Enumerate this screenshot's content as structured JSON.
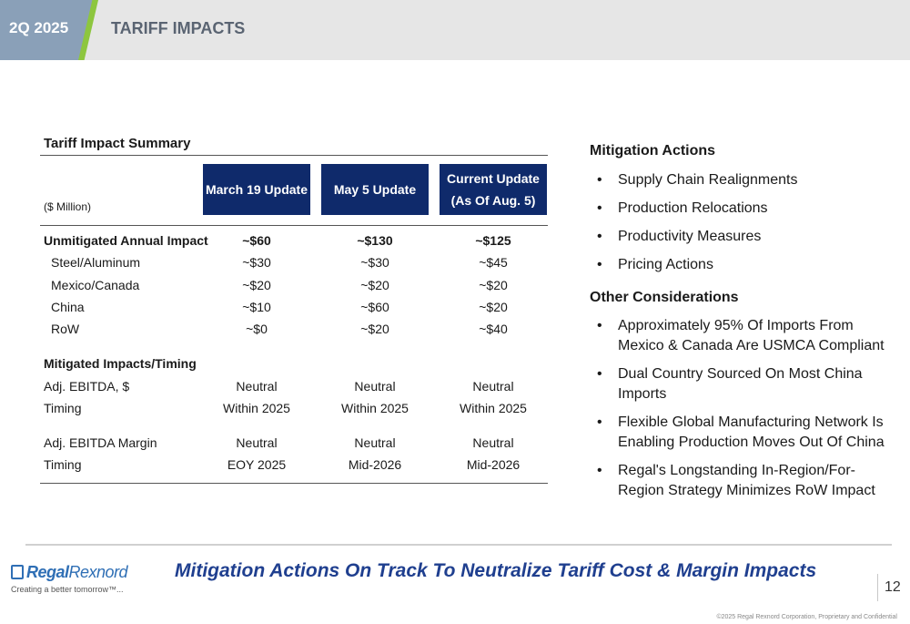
{
  "header": {
    "quarter": "2Q 2025",
    "title": "TARIFF IMPACTS"
  },
  "summary": {
    "title": "Tariff Impact Summary",
    "units": "($ Million)",
    "columns": [
      "March 19 Update",
      "May 5 Update",
      "Current Update\n(As Of Aug. 5)"
    ],
    "rows": [
      {
        "label": "Unmitigated Annual Impact",
        "values": [
          "~$60",
          "~$130",
          "~$125"
        ]
      },
      {
        "label": "Steel/Aluminum",
        "values": [
          "~$30",
          "~$30",
          "~$45"
        ]
      },
      {
        "label": "Mexico/Canada",
        "values": [
          "~$20",
          "~$20",
          "~$20"
        ]
      },
      {
        "label": "China",
        "values": [
          "~$10",
          "~$60",
          "~$20"
        ]
      },
      {
        "label": "RoW",
        "values": [
          "~$0",
          "~$20",
          "~$40"
        ]
      },
      {
        "label": "Mitigated Impacts/Timing",
        "values": [
          "",
          "",
          ""
        ]
      },
      {
        "label": "Adj. EBITDA, $",
        "values": [
          "Neutral",
          "Neutral",
          "Neutral"
        ]
      },
      {
        "label": "Timing",
        "values": [
          "Within 2025",
          "Within 2025",
          "Within 2025"
        ]
      },
      {
        "label": "Adj. EBITDA Margin",
        "values": [
          "Neutral",
          "Neutral",
          "Neutral"
        ]
      },
      {
        "label": "Timing",
        "values": [
          "EOY 2025",
          "Mid-2026",
          "Mid-2026"
        ]
      }
    ]
  },
  "mitigation": {
    "heading": "Mitigation Actions",
    "items": [
      "Supply Chain Realignments",
      "Production Relocations",
      "Productivity Measures",
      "Pricing Actions"
    ]
  },
  "considerations": {
    "heading": "Other Considerations",
    "items": [
      "Approximately 95% Of Imports From Mexico & Canada Are USMCA Compliant",
      "Dual Country Sourced On Most China Imports",
      "Flexible Global Manufacturing Network Is Enabling Production Moves Out Of China",
      "Regal's Longstanding In-Region/For-Region Strategy Minimizes RoW Impact"
    ]
  },
  "footer": {
    "logo_part1": "Regal",
    "logo_part2": "Rexnord",
    "tagline": "Creating a better tomorrow™...",
    "banner": "Mitigation Actions On Track To Neutralize Tariff Cost & Margin Impacts",
    "page_number": "12",
    "copyright": "©2025 Regal Rexnord Corporation, Proprietary and Confidential"
  },
  "colors": {
    "header_bg": "#e6e6e6",
    "quarter_tab": "#8aa0b8",
    "accent_green": "#8dc63f",
    "column_header": "#0f2a6b",
    "banner_text": "#1f3f8f",
    "logo_blue": "#2f6fb5"
  },
  "icons": {
    "logo_mark": "regal-rexnord-logo-mark-icon"
  }
}
